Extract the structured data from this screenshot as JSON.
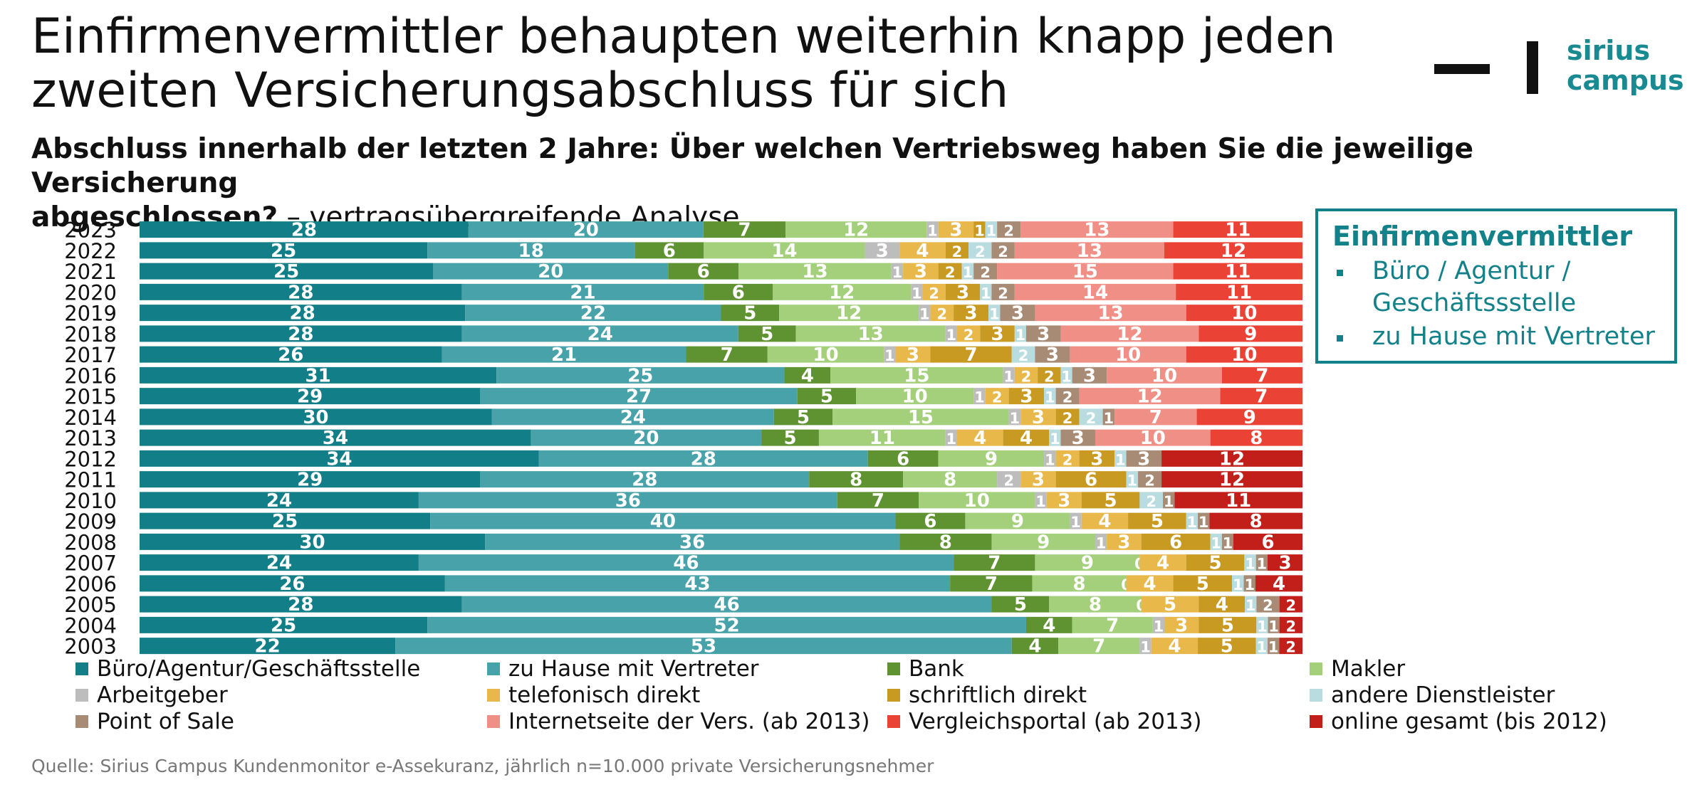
{
  "header": {
    "title_line1": "Einfirmenvermittler behaupten weiterhin knapp jeden",
    "title_line2": "zweiten Versicherungsabschluss für sich",
    "subtitle_bold_line1": "Abschluss innerhalb der letzten 2 Jahre: Über welchen Vertriebsweg haben Sie die jeweilige Versicherung",
    "subtitle_bold_line2": "abgeschlossen?",
    "subtitle_rest": " – vertragsübergreifende Analyse"
  },
  "logo": {
    "line1": "sirius",
    "line2": "campus",
    "color": "#1a8a92"
  },
  "infobox": {
    "title": "Einfirmenvermittler",
    "items": [
      "Büro / Agentur / Geschäftssstelle",
      "zu Hause mit Vertreter"
    ],
    "color": "#138189"
  },
  "source": "Quelle: Sirius Campus Kundenmonitor e-Assekuranz, jährlich n=10.000 private Versicherungsnehmer",
  "chart_data": {
    "type": "bar",
    "orientation": "horizontal",
    "stacked": true,
    "unit": "percent",
    "legend_position": "bottom",
    "grid": false,
    "categories": [
      "2023",
      "2022",
      "2021",
      "2020",
      "2019",
      "2018",
      "2017",
      "2016",
      "2015",
      "2014",
      "2013",
      "2012",
      "2011",
      "2010",
      "2009",
      "2008",
      "2007",
      "2006",
      "2005",
      "2004",
      "2003"
    ],
    "series": [
      {
        "name": "Büro/Agentur/Geschäftsstelle",
        "color": "#127f88",
        "label_color": "#ffffff",
        "values": [
          28,
          25,
          25,
          28,
          28,
          28,
          26,
          31,
          29,
          30,
          34,
          34,
          29,
          24,
          25,
          30,
          24,
          26,
          28,
          25,
          22
        ]
      },
      {
        "name": "zu Hause mit Vertreter",
        "color": "#48a2aa",
        "label_color": "#ffffff",
        "values": [
          20,
          18,
          20,
          21,
          22,
          24,
          21,
          25,
          27,
          24,
          20,
          28,
          28,
          36,
          40,
          36,
          46,
          43,
          46,
          52,
          53
        ]
      },
      {
        "name": "Bank",
        "color": "#5f9331",
        "label_color": "#ffffff",
        "values": [
          7,
          6,
          6,
          6,
          5,
          5,
          7,
          4,
          5,
          5,
          5,
          6,
          8,
          7,
          6,
          8,
          7,
          7,
          5,
          4,
          4
        ]
      },
      {
        "name": "Makler",
        "color": "#a4d07c",
        "label_color": "#ffffff",
        "values": [
          12,
          14,
          13,
          12,
          12,
          13,
          10,
          15,
          10,
          15,
          11,
          9,
          8,
          10,
          9,
          9,
          9,
          8,
          8,
          7,
          7
        ]
      },
      {
        "name": "Arbeitgeber",
        "color": "#bdbdbd",
        "label_color": "#ffffff",
        "values": [
          1,
          3,
          1,
          1,
          1,
          1,
          1,
          1,
          1,
          1,
          1,
          1,
          2,
          1,
          1,
          1,
          0,
          0,
          0,
          1,
          1
        ]
      },
      {
        "name": "telefonisch direkt",
        "color": "#e8b84a",
        "label_color": "#ffffff",
        "values": [
          3,
          4,
          3,
          2,
          2,
          2,
          3,
          2,
          2,
          3,
          4,
          2,
          3,
          3,
          4,
          3,
          4,
          4,
          5,
          3,
          4
        ]
      },
      {
        "name": "schriftlich direkt",
        "color": "#c99a22",
        "label_color": "#ffffff",
        "values": [
          1,
          2,
          2,
          3,
          3,
          3,
          7,
          2,
          3,
          2,
          4,
          3,
          6,
          5,
          5,
          6,
          5,
          5,
          4,
          5,
          5
        ]
      },
      {
        "name": "andere Dienstleister",
        "color": "#b9dce0",
        "label_color": "#ffffff",
        "values": [
          1,
          2,
          1,
          1,
          1,
          1,
          2,
          1,
          1,
          2,
          1,
          1,
          1,
          2,
          1,
          1,
          1,
          1,
          1,
          1,
          1
        ]
      },
      {
        "name": "Point of Sale",
        "color": "#a88b74",
        "label_color": "#ffffff",
        "values": [
          2,
          2,
          2,
          2,
          3,
          3,
          3,
          3,
          2,
          1,
          3,
          3,
          2,
          1,
          1,
          1,
          1,
          1,
          2,
          1,
          1
        ]
      },
      {
        "name": "Internetseite der Vers. (ab 2013)",
        "color": "#f08f86",
        "label_color": "#ffffff",
        "values": [
          13,
          13,
          15,
          14,
          13,
          12,
          10,
          10,
          12,
          7,
          10,
          null,
          null,
          null,
          null,
          null,
          null,
          null,
          null,
          null,
          null
        ]
      },
      {
        "name": "Vergleichsportal (ab 2013)",
        "color": "#ea4336",
        "label_color": "#ffffff",
        "values": [
          11,
          12,
          11,
          11,
          10,
          9,
          10,
          7,
          7,
          9,
          8,
          null,
          null,
          null,
          null,
          null,
          null,
          null,
          null,
          null,
          null
        ]
      },
      {
        "name": "online gesamt (bis 2012)",
        "color": "#c21f1a",
        "label_color": "#ffffff",
        "values": [
          null,
          null,
          null,
          null,
          null,
          null,
          null,
          null,
          null,
          null,
          null,
          12,
          12,
          11,
          8,
          6,
          3,
          4,
          2,
          2,
          2
        ]
      }
    ]
  }
}
